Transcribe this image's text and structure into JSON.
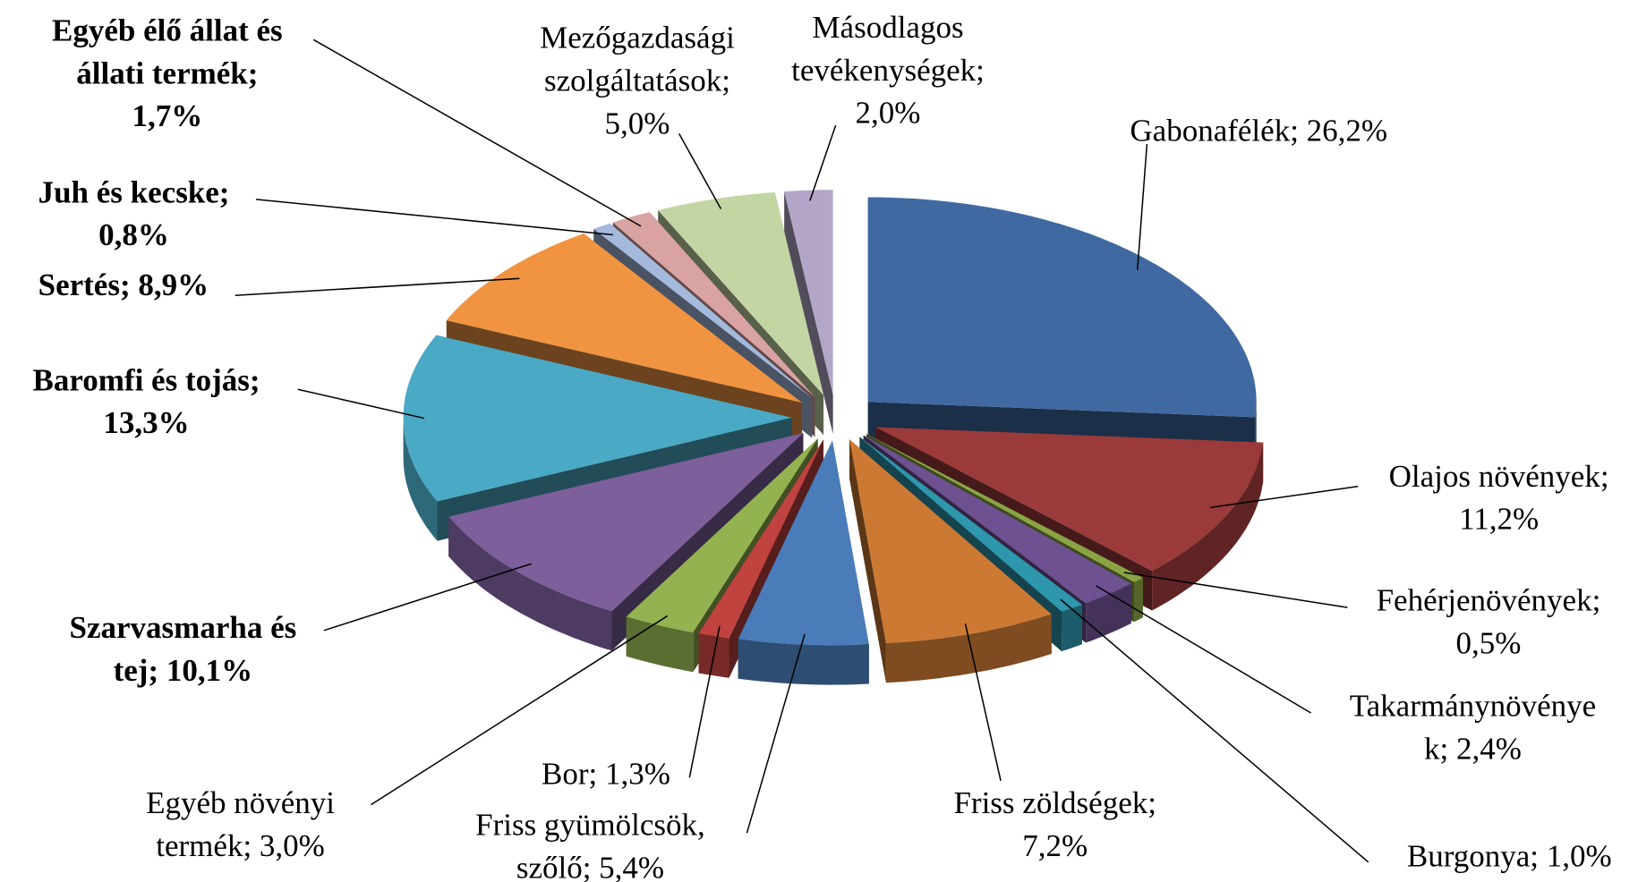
{
  "chart_data": {
    "type": "pie3d",
    "values": [
      26.2,
      11.2,
      0.5,
      2.4,
      1.0,
      7.2,
      5.4,
      1.3,
      3.0,
      10.1,
      13.3,
      8.9,
      0.8,
      1.7,
      5.0,
      2.0
    ],
    "value_labels": [
      [
        "Gabonafélék; 26,2%"
      ],
      [
        "Olajos növények;",
        "11,2%"
      ],
      [
        "Fehérjenövények;",
        "0,5%"
      ],
      [
        "Takarmánynövénye",
        "k; 2,4%"
      ],
      [
        "Burgonya; 1,0%"
      ],
      [
        "Friss zöldségek;",
        "7,2%"
      ],
      [
        "Friss gyümölcsök,",
        "szőlő; 5,4%"
      ],
      [
        "Bor; 1,3%"
      ],
      [
        "Egyéb növényi",
        "termék; 3,0%"
      ],
      [
        "Szarvasmarha és",
        "tej; 10,1%"
      ],
      [
        "Baromfi és tojás;",
        "13,3%"
      ],
      [
        "Sertés; 8,9%"
      ],
      [
        "Juh és kecske;",
        "0,8%"
      ],
      [
        "Egyéb élő állat és",
        "állati termék;",
        "1,7%"
      ],
      [
        "Mezőgazdasági",
        "szolgáltatások;",
        "5,0%"
      ],
      [
        "Másodlagos",
        "tevékenységek;",
        "2,0%"
      ]
    ],
    "bold": [
      false,
      false,
      false,
      false,
      false,
      false,
      false,
      false,
      false,
      true,
      true,
      true,
      true,
      true,
      false,
      false
    ],
    "colors": [
      "#3f69a0",
      "#9b3a3a",
      "#8aa444",
      "#6e5191",
      "#2e96ad",
      "#cc7a33",
      "#4a7cba",
      "#c0433f",
      "#93b250",
      "#7d5f9c",
      "#4aa9c4",
      "#f09442",
      "#a5b9dd",
      "#d9a3a3",
      "#c4d5a4",
      "#b3a6c8"
    ]
  }
}
